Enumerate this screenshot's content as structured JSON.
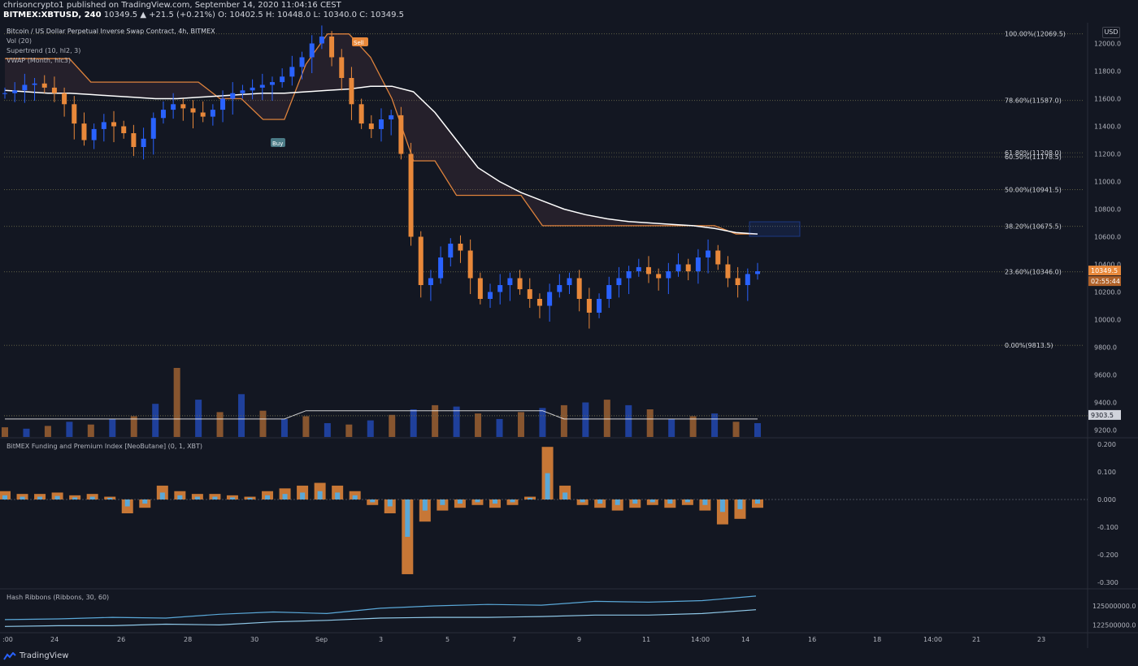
{
  "header": {
    "line1": "chrisoncrypto1 published on TradingView.com, September 14, 2020 11:04:16 CEST",
    "symbol": "BITMEX:XBTUSD, 240",
    "price_line": "10349.5 ▲ +21.5 (+0.21%) O: 10402.5 H: 10448.0 L: 10340.0 C: 10349.5"
  },
  "legend": {
    "title": "Bitcoin / US Dollar Perpetual Inverse Swap Contract, 4h, BITMEX",
    "vol": "Vol (20)",
    "supertrend": "Supertrend (10, hl2, 3)",
    "vwap": "VWAP (Month, hlc3)",
    "funding": "BitMEX Funding and Premium Index [NeoButane] (0, 1, XBT)",
    "hash": "Hash Ribbons (Ribbons, 30, 60)"
  },
  "currency_badge": "USD",
  "signals": {
    "buy": "Buy",
    "sell": "Sell"
  },
  "price_badges": {
    "last": "10349.5",
    "countdown": "02:55:44",
    "volume_ma": "9303.5"
  },
  "branding": "TradingView",
  "colors": {
    "bg": "#131722",
    "up": "#2962ff",
    "down": "#e8883a",
    "vwap": "#ffffff",
    "supertrend": "#e8883a",
    "grid": "#2a2e39",
    "funding_blue": "#5aa8d8"
  },
  "chart_data": [
    {
      "type": "candlestick",
      "title": "Bitcoin / US Dollar Perpetual Inverse Swap Contract, 4h, BITMEX",
      "x_ticks": [
        ":00",
        "24",
        "26",
        "28",
        "30",
        "Sep",
        "3",
        "5",
        "7",
        "9",
        "11",
        "14:00",
        "14",
        "16",
        "18",
        "14:00",
        "21",
        "23"
      ],
      "y_ticks": [
        "12000.0",
        "11800.0",
        "11600.0",
        "11400.0",
        "11200.0",
        "11000.0",
        "10800.0",
        "10600.0",
        "10400.0",
        "10200.0",
        "10000.0",
        "9800.0",
        "9600.0",
        "9400.0",
        "9200.0"
      ],
      "ylim": [
        9150,
        12150
      ],
      "fib_levels": [
        {
          "label": "100.00%(12069.5)",
          "value": 12069.5
        },
        {
          "label": "78.60%(11587.0)",
          "value": 11587.0
        },
        {
          "label": "61.80%(11208.0)",
          "value": 11208.0
        },
        {
          "label": "60.50%(11178.5)",
          "value": 11178.5
        },
        {
          "label": "50.00%(10941.5)",
          "value": 10941.5
        },
        {
          "label": "38.20%(10675.5)",
          "value": 10675.5
        },
        {
          "label": "23.60%(10346.0)",
          "value": 10346.0
        },
        {
          "label": "0.00%(9813.5)",
          "value": 9813.5
        }
      ],
      "close_path": [
        11640,
        11660,
        11700,
        11710,
        11680,
        11640,
        11560,
        11420,
        11300,
        11380,
        11430,
        11400,
        11350,
        11250,
        11310,
        11460,
        11520,
        11560,
        11530,
        11500,
        11470,
        11520,
        11600,
        11640,
        11660,
        11680,
        11700,
        11720,
        11760,
        11830,
        11900,
        12000,
        12050,
        11900,
        11750,
        11560,
        11420,
        11380,
        11450,
        11480,
        11200,
        10600,
        10250,
        10300,
        10450,
        10550,
        10500,
        10300,
        10150,
        10200,
        10250,
        10300,
        10220,
        10150,
        10100,
        10200,
        10250,
        10300,
        10150,
        10050,
        10150,
        10250,
        10300,
        10350,
        10380,
        10330,
        10300,
        10350,
        10400,
        10350,
        10450,
        10500,
        10400,
        10300,
        10250,
        10330,
        10350
      ],
      "vwap": [
        11660,
        11650,
        11640,
        11640,
        11630,
        11620,
        11610,
        11600,
        11600,
        11610,
        11620,
        11630,
        11640,
        11640,
        11650,
        11660,
        11670,
        11690,
        11690,
        11650,
        11500,
        11300,
        11100,
        11000,
        10920,
        10860,
        10800,
        10760,
        10730,
        10710,
        10700,
        10690,
        10680,
        10660,
        10630,
        10620
      ],
      "supertrend": [
        11890,
        11890,
        11890,
        11890,
        11720,
        11720,
        11720,
        11720,
        11720,
        11720,
        11600,
        11600,
        11450,
        11450,
        11850,
        12069,
        12069,
        11900,
        11600,
        11150,
        11150,
        10900,
        10900,
        10900,
        10900,
        10680,
        10680,
        10680,
        10680,
        10680,
        10680,
        10680,
        10680,
        10680,
        10620,
        10620
      ],
      "volume": [
        9220,
        9210,
        9230,
        9260,
        9240,
        9280,
        9300,
        9390,
        9650,
        9420,
        9330,
        9460,
        9340,
        9280,
        9300,
        9250,
        9240,
        9270,
        9310,
        9350,
        9380,
        9370,
        9320,
        9280,
        9330,
        9360,
        9380,
        9400,
        9420,
        9380,
        9350,
        9280,
        9300,
        9320,
        9260,
        9250
      ]
    },
    {
      "type": "bar",
      "title": "BitMEX Funding and Premium Index [NeoButane] (0, 1, XBT)",
      "y_ticks": [
        "0.200",
        "0.100",
        "0.000",
        "-0.100",
        "-0.200",
        "-0.300"
      ],
      "ylim": [
        -0.32,
        0.22
      ],
      "values": [
        0.03,
        0.02,
        0.02,
        0.025,
        0.015,
        0.02,
        0.01,
        -0.05,
        -0.03,
        0.05,
        0.03,
        0.02,
        0.02,
        0.015,
        0.01,
        0.03,
        0.04,
        0.05,
        0.06,
        0.05,
        0.03,
        -0.02,
        -0.05,
        -0.27,
        -0.08,
        -0.04,
        -0.03,
        -0.02,
        -0.03,
        -0.02,
        0.01,
        0.19,
        0.05,
        -0.02,
        -0.03,
        -0.04,
        -0.03,
        -0.02,
        -0.03,
        -0.02,
        -0.04,
        -0.09,
        -0.07,
        -0.03
      ]
    },
    {
      "type": "line",
      "title": "Hash Ribbons (Ribbons, 30, 60)",
      "y_ticks": [
        "125000000.0",
        "122500000.0"
      ],
      "series": [
        {
          "values": [
            123200000,
            123300000,
            123500000,
            123400000,
            123900000,
            124200000,
            124000000,
            124700000,
            125000000,
            125200000,
            125100000,
            125600000,
            125500000,
            125700000,
            126300000
          ]
        },
        {
          "values": [
            122300000,
            122400000,
            122400000,
            122600000,
            122500000,
            122900000,
            123100000,
            123400000,
            123500000,
            123500000,
            123600000,
            123800000,
            123800000,
            124000000,
            124500000
          ]
        }
      ]
    }
  ]
}
